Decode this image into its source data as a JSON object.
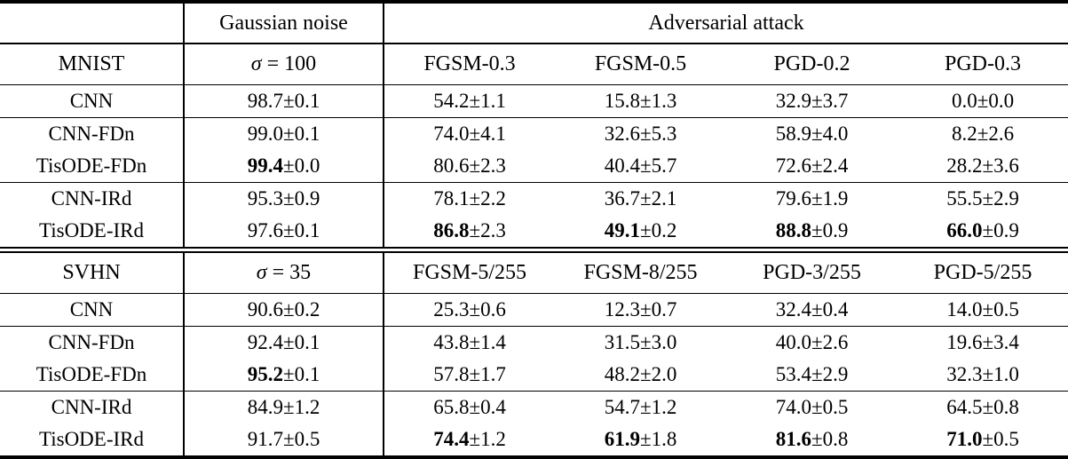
{
  "colors": {
    "text": "#000000",
    "background": "#ffffff",
    "rule": "#000000"
  },
  "pm_symbol": "±",
  "top_header": {
    "corner": "",
    "gaussian_label": "Gaussian noise",
    "adversarial_label": "Adversarial attack"
  },
  "sections": [
    {
      "dataset": "MNIST",
      "sigma_symbol": "σ",
      "sigma_rest": " = 100",
      "attack_headers": [
        "FGSM-0.3",
        "FGSM-0.5",
        "PGD-0.2",
        "PGD-0.3"
      ],
      "groups": [
        {
          "rows": [
            {
              "model": "CNN",
              "cells": [
                {
                  "main": "98.7",
                  "err": "0.1",
                  "bold": false
                },
                {
                  "main": "54.2",
                  "err": "1.1",
                  "bold": false
                },
                {
                  "main": "15.8",
                  "err": "1.3",
                  "bold": false
                },
                {
                  "main": "32.9",
                  "err": "3.7",
                  "bold": false
                },
                {
                  "main": "0.0",
                  "err": "0.0",
                  "bold": false
                }
              ]
            }
          ]
        },
        {
          "rows": [
            {
              "model": "CNN-FDn",
              "cells": [
                {
                  "main": "99.0",
                  "err": "0.1",
                  "bold": false
                },
                {
                  "main": "74.0",
                  "err": "4.1",
                  "bold": false
                },
                {
                  "main": "32.6",
                  "err": "5.3",
                  "bold": false
                },
                {
                  "main": "58.9",
                  "err": "4.0",
                  "bold": false
                },
                {
                  "main": "8.2",
                  "err": "2.6",
                  "bold": false
                }
              ]
            },
            {
              "model": "TisODE-FDn",
              "cells": [
                {
                  "main": "99.4",
                  "err": "0.0",
                  "bold": true
                },
                {
                  "main": "80.6",
                  "err": "2.3",
                  "bold": false
                },
                {
                  "main": "40.4",
                  "err": "5.7",
                  "bold": false
                },
                {
                  "main": "72.6",
                  "err": "2.4",
                  "bold": false
                },
                {
                  "main": "28.2",
                  "err": "3.6",
                  "bold": false
                }
              ]
            }
          ]
        },
        {
          "rows": [
            {
              "model": "CNN-IRd",
              "cells": [
                {
                  "main": "95.3",
                  "err": "0.9",
                  "bold": false
                },
                {
                  "main": "78.1",
                  "err": "2.2",
                  "bold": false
                },
                {
                  "main": "36.7",
                  "err": "2.1",
                  "bold": false
                },
                {
                  "main": "79.6",
                  "err": "1.9",
                  "bold": false
                },
                {
                  "main": "55.5",
                  "err": "2.9",
                  "bold": false
                }
              ]
            },
            {
              "model": "TisODE-IRd",
              "cells": [
                {
                  "main": "97.6",
                  "err": "0.1",
                  "bold": false
                },
                {
                  "main": "86.8",
                  "err": "2.3",
                  "bold": true
                },
                {
                  "main": "49.1",
                  "err": "0.2",
                  "bold": true
                },
                {
                  "main": "88.8",
                  "err": "0.9",
                  "bold": true
                },
                {
                  "main": "66.0",
                  "err": "0.9",
                  "bold": true
                }
              ]
            }
          ]
        }
      ]
    },
    {
      "dataset": "SVHN",
      "sigma_symbol": "σ",
      "sigma_rest": " = 35",
      "attack_headers": [
        "FGSM-5/255",
        "FGSM-8/255",
        "PGD-3/255",
        "PGD-5/255"
      ],
      "groups": [
        {
          "rows": [
            {
              "model": "CNN",
              "cells": [
                {
                  "main": "90.6",
                  "err": "0.2",
                  "bold": false
                },
                {
                  "main": "25.3",
                  "err": "0.6",
                  "bold": false
                },
                {
                  "main": "12.3",
                  "err": "0.7",
                  "bold": false
                },
                {
                  "main": "32.4",
                  "err": "0.4",
                  "bold": false
                },
                {
                  "main": "14.0",
                  "err": "0.5",
                  "bold": false
                }
              ]
            }
          ]
        },
        {
          "rows": [
            {
              "model": "CNN-FDn",
              "cells": [
                {
                  "main": "92.4",
                  "err": "0.1",
                  "bold": false
                },
                {
                  "main": "43.8",
                  "err": "1.4",
                  "bold": false
                },
                {
                  "main": "31.5",
                  "err": "3.0",
                  "bold": false
                },
                {
                  "main": "40.0",
                  "err": "2.6",
                  "bold": false
                },
                {
                  "main": "19.6",
                  "err": "3.4",
                  "bold": false
                }
              ]
            },
            {
              "model": "TisODE-FDn",
              "cells": [
                {
                  "main": "95.2",
                  "err": "0.1",
                  "bold": true
                },
                {
                  "main": "57.8",
                  "err": "1.7",
                  "bold": false
                },
                {
                  "main": "48.2",
                  "err": "2.0",
                  "bold": false
                },
                {
                  "main": "53.4",
                  "err": "2.9",
                  "bold": false
                },
                {
                  "main": "32.3",
                  "err": "1.0",
                  "bold": false
                }
              ]
            }
          ]
        },
        {
          "rows": [
            {
              "model": "CNN-IRd",
              "cells": [
                {
                  "main": "84.9",
                  "err": "1.2",
                  "bold": false
                },
                {
                  "main": "65.8",
                  "err": "0.4",
                  "bold": false
                },
                {
                  "main": "54.7",
                  "err": "1.2",
                  "bold": false
                },
                {
                  "main": "74.0",
                  "err": "0.5",
                  "bold": false
                },
                {
                  "main": "64.5",
                  "err": "0.8",
                  "bold": false
                }
              ]
            },
            {
              "model": "TisODE-IRd",
              "cells": [
                {
                  "main": "91.7",
                  "err": "0.5",
                  "bold": false
                },
                {
                  "main": "74.4",
                  "err": "1.2",
                  "bold": true
                },
                {
                  "main": "61.9",
                  "err": "1.8",
                  "bold": true
                },
                {
                  "main": "81.6",
                  "err": "0.8",
                  "bold": true
                },
                {
                  "main": "71.0",
                  "err": "0.5",
                  "bold": true
                }
              ]
            }
          ]
        }
      ]
    }
  ]
}
